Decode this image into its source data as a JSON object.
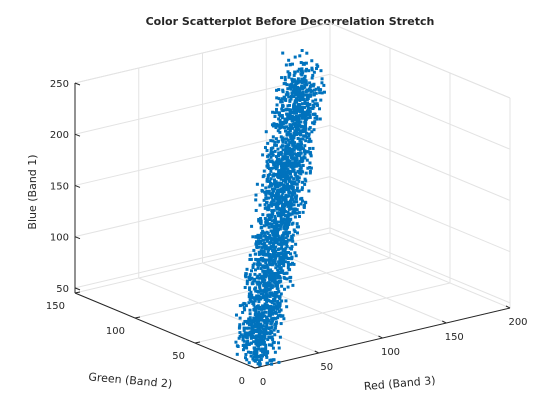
{
  "chart_data": {
    "type": "scatter",
    "title": "Color Scatterplot Before Decorrelation Stretch",
    "xlabel": "Red (Band 3)",
    "ylabel": "Green (Band 2)",
    "zlabel": "Blue (Band 1)",
    "xlim": [
      0,
      200
    ],
    "ylim": [
      0,
      150
    ],
    "zlim": [
      45,
      250
    ],
    "xticks": [
      "0",
      "50",
      "100",
      "150",
      "200"
    ],
    "yticks": [
      "0",
      "50",
      "100",
      "150"
    ],
    "zticks": [
      "50",
      "100",
      "150",
      "200",
      "250"
    ],
    "grid": true,
    "marker_color": "#0072bd",
    "marker": "point",
    "series": [
      {
        "note_points_sampled": true,
        "points": [
          [
            10,
            10,
            55
          ],
          [
            15,
            12,
            58
          ],
          [
            20,
            16,
            62
          ],
          [
            25,
            18,
            66
          ],
          [
            30,
            22,
            70
          ],
          [
            35,
            25,
            74
          ],
          [
            40,
            30,
            78
          ],
          [
            45,
            32,
            82
          ],
          [
            50,
            36,
            86
          ],
          [
            55,
            40,
            90
          ],
          [
            60,
            44,
            95
          ],
          [
            65,
            48,
            100
          ],
          [
            70,
            52,
            104
          ],
          [
            75,
            56,
            110
          ],
          [
            80,
            60,
            115
          ],
          [
            85,
            64,
            120
          ],
          [
            90,
            68,
            126
          ],
          [
            95,
            72,
            132
          ],
          [
            100,
            76,
            138
          ],
          [
            105,
            80,
            145
          ],
          [
            110,
            86,
            152
          ],
          [
            115,
            90,
            160
          ],
          [
            120,
            95,
            168
          ],
          [
            125,
            100,
            176
          ],
          [
            130,
            104,
            185
          ],
          [
            135,
            108,
            194
          ],
          [
            140,
            112,
            204
          ],
          [
            145,
            116,
            214
          ],
          [
            150,
            120,
            224
          ],
          [
            155,
            124,
            236
          ]
        ]
      }
    ]
  }
}
